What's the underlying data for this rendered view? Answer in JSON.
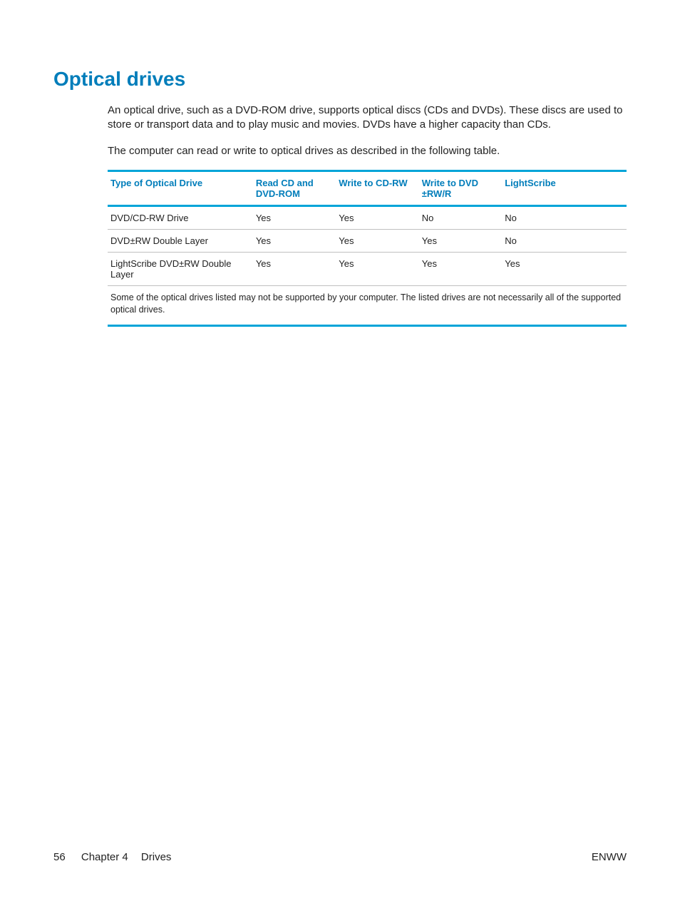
{
  "colors": {
    "heading": "#007dba",
    "rule": "#00a4d8",
    "row_border": "#bfbfbf",
    "text": "#222222",
    "background": "#ffffff"
  },
  "heading": "Optical drives",
  "paragraphs": {
    "p1": "An optical drive, such as a DVD-ROM drive, supports optical discs (CDs and DVDs). These discs are used to store or transport data and to play music and movies. DVDs have a higher capacity than CDs.",
    "p2": "The computer can read or write to optical drives as described in the following table."
  },
  "table": {
    "type": "table",
    "columns": [
      {
        "label": "Type of Optical Drive",
        "width_pct": 28,
        "align": "left"
      },
      {
        "label": "Read CD and DVD-ROM",
        "width_pct": 16,
        "align": "left"
      },
      {
        "label": "Write to CD-RW",
        "width_pct": 16,
        "align": "left"
      },
      {
        "label": "Write to DVD ±RW/R",
        "width_pct": 16,
        "align": "left"
      },
      {
        "label": "LightScribe",
        "width_pct": 24,
        "align": "left"
      }
    ],
    "rows": [
      [
        "DVD/CD-RW Drive",
        "Yes",
        "Yes",
        "No",
        "No"
      ],
      [
        "DVD±RW Double Layer",
        "Yes",
        "Yes",
        "Yes",
        "No"
      ],
      [
        "LightScribe DVD±RW Double Layer",
        "Yes",
        "Yes",
        "Yes",
        "Yes"
      ]
    ],
    "footnote": "Some of the optical drives listed may not be supported by your computer. The listed drives are not necessarily all of the supported optical drives.",
    "header_color": "#007dba",
    "rule_color": "#00a4d8",
    "row_border_color": "#bfbfbf",
    "header_fontsize": 13,
    "body_fontsize": 13,
    "footnote_fontsize": 12.5
  },
  "footer": {
    "page_number": "56",
    "chapter_label": "Chapter 4",
    "chapter_title": "Drives",
    "right": "ENWW"
  }
}
